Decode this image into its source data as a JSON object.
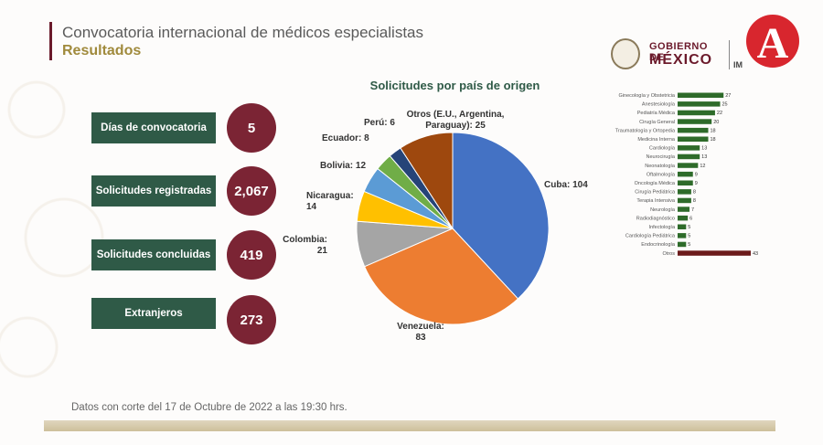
{
  "header": {
    "title": "Convocatoria internacional de médicos especialistas",
    "subtitle": "Resultados"
  },
  "logos": {
    "gov_line1": "GOBIERNO DE",
    "gov_line2": "MÉXICO",
    "partner_fragment": "IM",
    "channel_letter": "A"
  },
  "kpis": [
    {
      "label": "Días de convocatoria",
      "value": "5"
    },
    {
      "label": "Solicitudes registradas",
      "value": "2,067"
    },
    {
      "label": "Solicitudes concluidas",
      "value": "419"
    },
    {
      "label": "Extranjeros",
      "value": "273"
    }
  ],
  "footnote": "Datos con corte del 17 de Octubre de 2022 a las 19:30 hrs.",
  "colors": {
    "dark_green": "#2f5a47",
    "wine": "#7b2434",
    "gold": "#a08a3c",
    "bar_green": "#2e6b2a",
    "bar_other": "#6b1a1a"
  },
  "chart_data": [
    {
      "type": "pie",
      "title": "Solicitudes por país de origen",
      "slices": [
        {
          "label": "Cuba: 104",
          "value": 104,
          "color": "#4472c4"
        },
        {
          "label": "Venezuela: 83",
          "value": 83,
          "color": "#ed7d31"
        },
        {
          "label": "Colombia: 21",
          "value": 21,
          "color": "#a5a5a5"
        },
        {
          "label": "Nicaragua: 14",
          "value": 14,
          "color": "#ffc000"
        },
        {
          "label": "Bolivia: 12",
          "value": 12,
          "color": "#5b9bd5"
        },
        {
          "label": "Ecuador: 8",
          "value": 8,
          "color": "#70ad47"
        },
        {
          "label": "Perú: 6",
          "value": 6,
          "color": "#264478"
        },
        {
          "label": "Otros (E.U., Argentina, Paraguay): 25",
          "value": 25,
          "color": "#9e480e"
        }
      ]
    },
    {
      "type": "bar",
      "orientation": "horizontal",
      "categories": [
        "Ginecología y Obstetricia",
        "Anestesiología",
        "Pediatría Médica",
        "Cirugía General",
        "Traumatología y Ortopedia",
        "Medicina Interna",
        "Cardiología",
        "Neurocirugía",
        "Neonatología",
        "Oftalmología",
        "Oncología Médica",
        "Cirugía Pediátrica",
        "Terapia Intensiva",
        "Neurología",
        "Radiodiagnóstico",
        "Infectología",
        "Cardiología Pediátrica",
        "Endocrinología",
        "Otros"
      ],
      "values": [
        27,
        25,
        22,
        20,
        18,
        18,
        13,
        13,
        12,
        9,
        9,
        8,
        8,
        7,
        6,
        5,
        5,
        5,
        43
      ],
      "max": 43
    }
  ]
}
